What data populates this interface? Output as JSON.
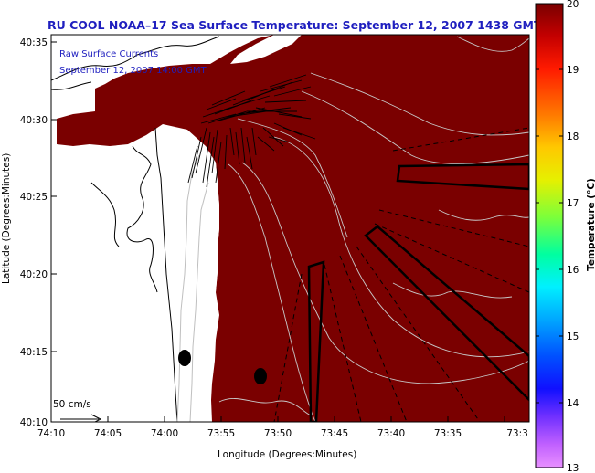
{
  "title": "RU COOL  NOAA–17  Sea Surface Temperature:  September 12, 2007 1438 GMT",
  "annotation_line1": "Raw Surface Currents",
  "annotation_line2": "September 12, 2007 14:00 GMT",
  "scale_label": "50 cm/s",
  "xlabel": "Longitude (Degrees:Minutes)",
  "ylabel": "Latitude (Degrees:Minutes)",
  "colorbar_label": "Temperature (°C)",
  "colorbar_ticks": [
    "20",
    "19",
    "18",
    "17",
    "16",
    "15",
    "14",
    "13"
  ],
  "x_ticks": [
    "74:10",
    "74:05",
    "74:00",
    "73:55",
    "73:50",
    "73:45",
    "73:40",
    "73:35",
    "73:3"
  ],
  "y_ticks": [
    "40:35",
    "40:30",
    "40:25",
    "40:20",
    "40:15",
    "40:10"
  ],
  "colors": {
    "sst_fill": "#7a0000",
    "title_text": "#1f1fbf",
    "land": "#ffffff",
    "contour": "#c8c8c8"
  }
}
